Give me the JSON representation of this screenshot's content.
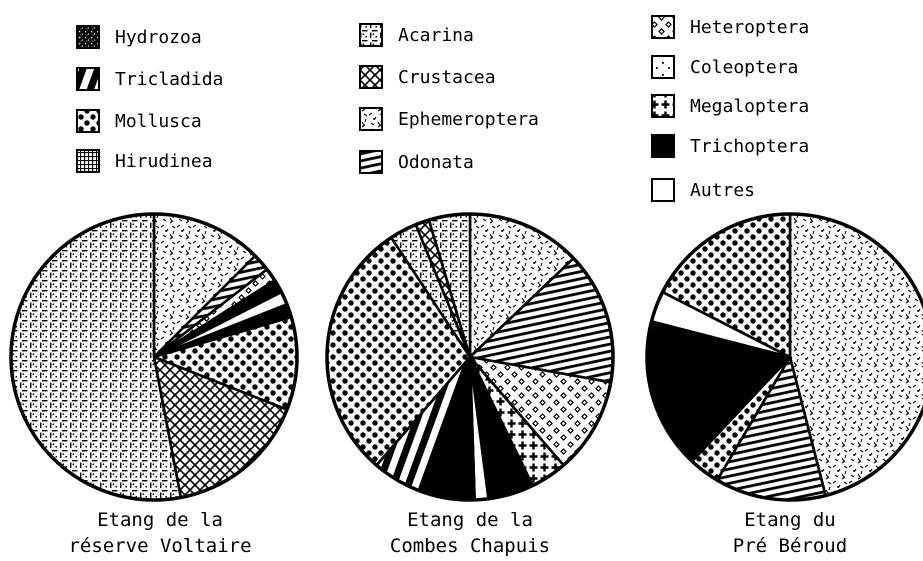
{
  "chart_data": [
    {
      "type": "pie",
      "title": "Etang de la réserve Voltaire",
      "title_lines": [
        "Etang de la",
        "réserve Voltaire"
      ],
      "slices": [
        {
          "category": "Ephemeroptera",
          "value": 12.5
        },
        {
          "category": "Odonata",
          "value": 2.0
        },
        {
          "category": "Heteroptera",
          "value": 1.5
        },
        {
          "category": "Trichoptera",
          "value": 1.5
        },
        {
          "category": "Autres",
          "value": 1.5
        },
        {
          "category": "Trichoptera",
          "value": 1.5
        },
        {
          "category": "Mollusca",
          "value": 10.5
        },
        {
          "category": "Crustacea",
          "value": 16.0
        },
        {
          "category": "Acarina",
          "value": 53.0
        }
      ]
    },
    {
      "type": "pie",
      "title": "Etang de la Combes Chapuis",
      "title_lines": [
        "Etang de la",
        "Combes Chapuis"
      ],
      "slices": [
        {
          "category": "Ephemeroptera",
          "value": 12.5
        },
        {
          "category": "Odonata",
          "value": 14.5
        },
        {
          "category": "Heteroptera",
          "value": 10.5
        },
        {
          "category": "Megaloptera",
          "value": 4.0
        },
        {
          "category": "Trichoptera",
          "value": 5.0
        },
        {
          "category": "Autres",
          "value": 1.5
        },
        {
          "category": "Trichoptera",
          "value": 6.0
        },
        {
          "category": "Tricladida",
          "value": 5.5
        },
        {
          "category": "Mollusca",
          "value": 28.5
        },
        {
          "category": "Acarina",
          "value": 3.0
        },
        {
          "category": "Crustacea",
          "value": 1.5
        },
        {
          "category": "Acarina",
          "value": 4.5
        }
      ]
    },
    {
      "type": "pie",
      "title": "Etang du Pré Béroud",
      "title_lines": [
        "Etang du",
        "Pré Béroud"
      ],
      "slices": [
        {
          "category": "Ephemeroptera",
          "value": 46.0
        },
        {
          "category": "Odonata",
          "value": 12.5
        },
        {
          "category": "Mollusca",
          "value": 3.5
        },
        {
          "category": "Trichoptera",
          "value": 17.0
        },
        {
          "category": "Autres",
          "value": 3.5
        },
        {
          "category": "Mollusca",
          "value": 17.5
        }
      ]
    }
  ],
  "legend": [
    {
      "label": "Hydrozoa",
      "pattern": "hydrozoa"
    },
    {
      "label": "Tricladida",
      "pattern": "tricladida"
    },
    {
      "label": "Mollusca",
      "pattern": "mollusca"
    },
    {
      "label": "Hirudinea",
      "pattern": "hirudinea"
    },
    {
      "label": "Acarina",
      "pattern": "acarina"
    },
    {
      "label": "Crustacea",
      "pattern": "crustacea"
    },
    {
      "label": "Ephemeroptera",
      "pattern": "ephemeroptera"
    },
    {
      "label": "Odonata",
      "pattern": "odonata"
    },
    {
      "label": "Heteroptera",
      "pattern": "heteroptera"
    },
    {
      "label": "Coleoptera",
      "pattern": "coleoptera"
    },
    {
      "label": "Megaloptera",
      "pattern": "megaloptera"
    },
    {
      "label": "Trichoptera",
      "pattern": "trichoptera"
    },
    {
      "label": "Autres",
      "pattern": "autres"
    }
  ],
  "colors": {
    "ink": "#000000",
    "paper": "#ffffff"
  }
}
